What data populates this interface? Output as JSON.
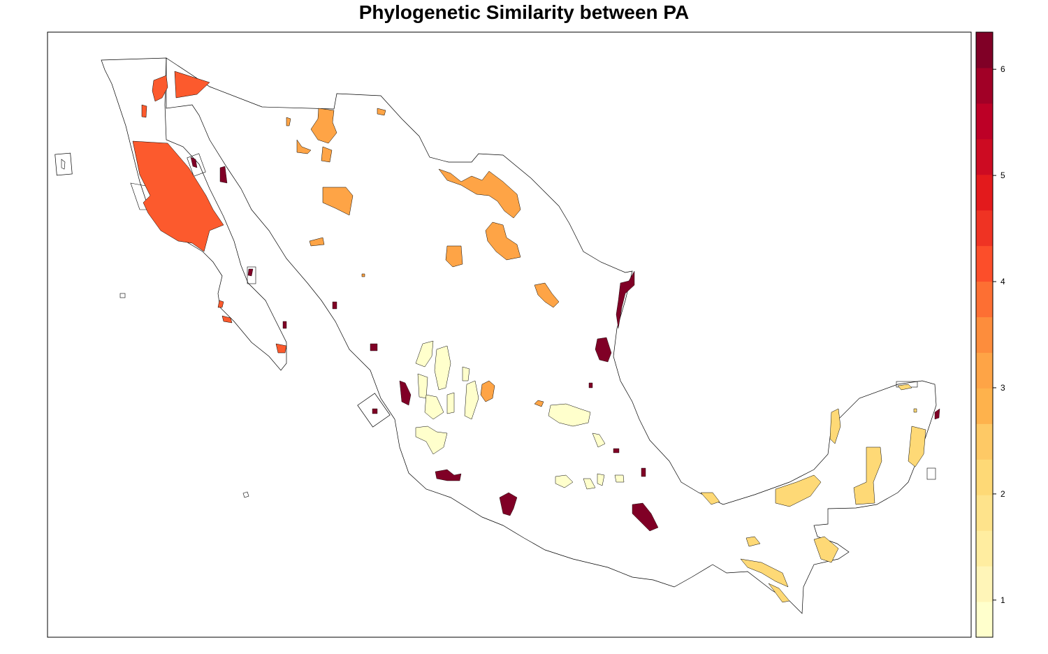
{
  "title": "Phylogenetic Similarity between PA",
  "colorbar": {
    "min": 0.65,
    "max": 6.35,
    "ticks": [
      "1",
      "2",
      "3",
      "4",
      "5",
      "6"
    ],
    "tick_values": [
      1,
      2,
      3,
      4,
      5,
      6
    ],
    "colors": [
      "#FFFFCC",
      "#FFF5B8",
      "#FFEDA0",
      "#FEE38B",
      "#FED976",
      "#FEC965",
      "#FEB24C",
      "#FEA446",
      "#FD8D3C",
      "#FD6F33",
      "#FC4E2A",
      "#EF3323",
      "#E31A1C",
      "#CD0B22",
      "#BD0026",
      "#A10026",
      "#800026"
    ]
  },
  "legend_colors": {
    "sim_1": "#FFFFCC",
    "sim_2": "#FED976",
    "sim_3": "#FEA446",
    "sim_4": "#FC5A2D",
    "sim_6": "#800026"
  }
}
